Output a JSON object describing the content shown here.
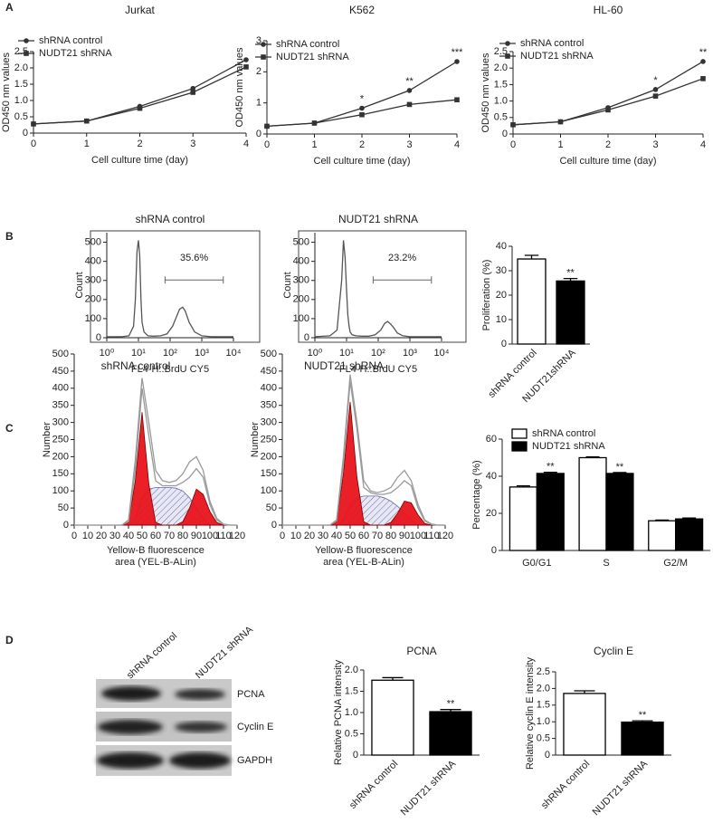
{
  "panel_labels": [
    "A",
    "B",
    "C",
    "D"
  ],
  "blot": {
    "lanes": [
      "shRNA control",
      "NUDT21 shRNA"
    ],
    "rows": [
      "PCNA",
      "Cyclin E",
      "GAPDH"
    ]
  },
  "chart_data": [
    {
      "type": "line",
      "title": "Jurkat",
      "x_label": "Cell culture time (day)",
      "y_label": "OD450 nm values",
      "x": [
        0,
        1,
        2,
        3,
        4
      ],
      "xlim": [
        0,
        4
      ],
      "xticks": [
        0,
        1,
        2,
        3,
        4
      ],
      "ylim": [
        0,
        2.5
      ],
      "yticks": [
        0,
        0.5,
        {
          "value": 1,
          "label": "1.0"
        },
        1.5,
        {
          "value": 2,
          "label": "2.0"
        },
        2.5
      ],
      "legend": "upper left",
      "series": [
        {
          "name": "shRNA control",
          "color": "#333333",
          "marker": "circle",
          "values": [
            0.28,
            0.37,
            0.82,
            1.37,
            2.25
          ]
        },
        {
          "name": "NUDT21 shRNA",
          "color": "#333333",
          "marker": "square",
          "values": [
            0.28,
            0.37,
            0.76,
            1.25,
            2.03
          ]
        }
      ]
    },
    {
      "type": "line",
      "title": "K562",
      "x_label": "Cell culture time (day)",
      "y_label": "OD450 nm values",
      "x": [
        0,
        1,
        2,
        3,
        4
      ],
      "xlim": [
        0,
        4
      ],
      "xticks": [
        0,
        1,
        2,
        3,
        4
      ],
      "ylim": [
        0,
        3
      ],
      "yticks": [
        0,
        1,
        2,
        3
      ],
      "legend": "upper left",
      "series": [
        {
          "name": "shRNA control",
          "color": "#333333",
          "marker": "circle",
          "values": [
            0.25,
            0.35,
            0.83,
            1.4,
            2.33
          ],
          "annotations": [
            null,
            null,
            "*",
            "**",
            "***"
          ]
        },
        {
          "name": "NUDT21 shRNA",
          "color": "#333333",
          "marker": "square",
          "values": [
            0.25,
            0.35,
            0.62,
            0.95,
            1.1
          ]
        }
      ]
    },
    {
      "type": "line",
      "title": "HL-60",
      "x_label": "Cell culture time (day)",
      "y_label": "OD450 nm values",
      "x": [
        0,
        1,
        2,
        3,
        4
      ],
      "xlim": [
        0,
        4
      ],
      "xticks": [
        0,
        1,
        2,
        3,
        4
      ],
      "ylim": [
        0,
        2.5
      ],
      "yticks": [
        0,
        0.5,
        {
          "value": 1,
          "label": "1.0"
        },
        1.5,
        {
          "value": 2,
          "label": "2.0"
        },
        2.5
      ],
      "legend": "upper left",
      "series": [
        {
          "name": "shRNA control",
          "color": "#333333",
          "marker": "circle",
          "values": [
            0.28,
            0.37,
            0.8,
            1.35,
            2.2
          ],
          "annotations": [
            null,
            null,
            null,
            "*",
            "**"
          ]
        },
        {
          "name": "NUDT21 shRNA",
          "color": "#333333",
          "marker": "square",
          "values": [
            0.28,
            0.37,
            0.73,
            1.15,
            1.68
          ]
        }
      ]
    },
    {
      "type": "line",
      "xscale": "log",
      "frame": true,
      "title": "shRNA control",
      "x_label": "FL4-H::BrdU CY5",
      "y_label": "Count",
      "gate_label": "35.6%",
      "x": [
        1,
        3,
        5,
        7,
        8,
        9,
        10,
        11,
        12,
        13,
        15,
        20,
        30,
        50,
        80,
        120,
        160,
        200,
        250,
        300,
        400,
        600,
        1000,
        2000,
        10000
      ],
      "xlim": [
        1,
        10000
      ],
      "xticks": [
        {
          "value": 1,
          "label": "10⁰"
        },
        {
          "value": 10,
          "label": "10¹"
        },
        {
          "value": 100,
          "label": "10²"
        },
        {
          "value": 1000,
          "label": "10³"
        },
        {
          "value": 10000,
          "label": "10⁴"
        }
      ],
      "ylim": [
        0,
        550
      ],
      "yticks": [
        0,
        100,
        200,
        300,
        400,
        500
      ],
      "series": [
        {
          "color": "#555555",
          "values": [
            5,
            5,
            10,
            60,
            200,
            450,
            510,
            430,
            200,
            80,
            30,
            10,
            8,
            10,
            20,
            60,
            110,
            150,
            160,
            140,
            80,
            30,
            10,
            5,
            5
          ]
        }
      ]
    },
    {
      "type": "line",
      "xscale": "log",
      "frame": true,
      "title": "NUDT21 shRNA",
      "x_label": "FL4-H::BrdU CY5",
      "y_label": "Count",
      "gate_label": "23.2%",
      "x": [
        1,
        3,
        5,
        7,
        8,
        9,
        10,
        11,
        12,
        13,
        15,
        20,
        30,
        50,
        80,
        120,
        160,
        200,
        250,
        300,
        400,
        600,
        1000,
        2000,
        10000
      ],
      "xlim": [
        1,
        10000
      ],
      "xticks": [
        {
          "value": 1,
          "label": "10⁰"
        },
        {
          "value": 10,
          "label": "10¹"
        },
        {
          "value": 100,
          "label": "10²"
        },
        {
          "value": 1000,
          "label": "10³"
        },
        {
          "value": 10000,
          "label": "10⁴"
        }
      ],
      "ylim": [
        0,
        550
      ],
      "yticks": [
        0,
        100,
        200,
        300,
        400,
        500
      ],
      "series": [
        {
          "color": "#555555",
          "values": [
            5,
            10,
            40,
            300,
            510,
            420,
            250,
            120,
            60,
            30,
            15,
            10,
            8,
            8,
            15,
            40,
            75,
            85,
            70,
            55,
            25,
            10,
            5,
            5,
            5
          ]
        }
      ]
    },
    {
      "type": "bar",
      "y_label": "Proliferation (%)",
      "categories": [
        "shRNA control",
        "NUDT21shRNA"
      ],
      "ylim": [
        0,
        40
      ],
      "yticks": [
        0,
        10,
        20,
        30,
        40
      ],
      "series": [
        {
          "colors": [
            "#ffffff",
            "#000000"
          ],
          "values": [
            34.8,
            25.8
          ],
          "errors": [
            1.5,
            1.0
          ],
          "annotations": [
            null,
            "**"
          ]
        }
      ]
    },
    {
      "type": "area",
      "title": "shRNA control",
      "x_label": [
        "Yellow-B fluorescence",
        "area (YEL-B-ALin)"
      ],
      "y_label": "Number",
      "x": [
        0,
        5,
        10,
        15,
        20,
        25,
        30,
        35,
        40,
        45,
        50,
        55,
        60,
        65,
        70,
        75,
        80,
        85,
        90,
        95,
        100,
        105,
        110,
        115,
        120
      ],
      "xlim": [
        0,
        120
      ],
      "xticks": [
        0,
        10,
        20,
        30,
        40,
        50,
        60,
        70,
        80,
        90,
        100,
        110,
        120
      ],
      "ylim": [
        0,
        500
      ],
      "yticks": [
        0,
        50,
        100,
        150,
        200,
        250,
        300,
        350,
        400,
        450,
        500
      ],
      "series": [
        {
          "color": "#6a6aa8",
          "style": "hatch",
          "values": [
            0,
            0,
            0,
            0,
            0,
            0,
            0,
            0,
            0,
            20,
            80,
            105,
            110,
            110,
            110,
            108,
            100,
            80,
            50,
            20,
            0,
            0,
            0,
            0,
            0
          ]
        },
        {
          "color": "#e8141c",
          "style": "fill",
          "values": [
            0,
            0,
            0,
            0,
            0,
            0,
            0,
            0,
            8,
            130,
            330,
            120,
            8,
            0,
            0,
            0,
            0,
            0,
            0,
            0,
            0,
            0,
            0,
            0,
            0
          ]
        },
        {
          "color": "#e8141c",
          "style": "fill",
          "values": [
            0,
            0,
            0,
            0,
            0,
            0,
            0,
            0,
            0,
            0,
            0,
            0,
            0,
            0,
            0,
            0,
            10,
            50,
            105,
            90,
            40,
            8,
            0,
            0,
            0
          ]
        },
        {
          "color": "#9a9a9a",
          "style": "line",
          "values": [
            0,
            0,
            0,
            0,
            0,
            0,
            0,
            0,
            10,
            160,
            400,
            260,
            130,
            115,
            115,
            115,
            125,
            140,
            165,
            140,
            60,
            15,
            2,
            0,
            0
          ]
        },
        {
          "color": "#9a9a9a",
          "style": "line",
          "values": [
            0,
            0,
            0,
            0,
            0,
            0,
            0,
            0,
            15,
            190,
            430,
            300,
            160,
            130,
            125,
            130,
            150,
            185,
            200,
            160,
            70,
            20,
            3,
            0,
            0
          ]
        }
      ]
    },
    {
      "type": "area",
      "title": "NUDT21 shRNA",
      "x_label": [
        "Yellow-B fluorescence",
        "area (YEL-B-ALin)"
      ],
      "y_label": "Number",
      "x": [
        0,
        5,
        10,
        15,
        20,
        25,
        30,
        35,
        40,
        45,
        50,
        55,
        60,
        65,
        70,
        75,
        80,
        85,
        90,
        95,
        100,
        105,
        110,
        115,
        120
      ],
      "xlim": [
        0,
        120
      ],
      "xticks": [
        0,
        10,
        20,
        30,
        40,
        50,
        60,
        70,
        80,
        90,
        100,
        110,
        120
      ],
      "ylim": [
        0,
        500
      ],
      "yticks": [
        0,
        50,
        100,
        150,
        200,
        250,
        300,
        350,
        400,
        450,
        500
      ],
      "series": [
        {
          "color": "#6a6aa8",
          "style": "hatch",
          "values": [
            0,
            0,
            0,
            0,
            0,
            0,
            0,
            0,
            0,
            15,
            60,
            80,
            85,
            85,
            85,
            80,
            70,
            55,
            35,
            15,
            0,
            0,
            0,
            0,
            0
          ]
        },
        {
          "color": "#e8141c",
          "style": "fill",
          "values": [
            0,
            0,
            0,
            0,
            0,
            0,
            0,
            0,
            10,
            150,
            360,
            140,
            10,
            0,
            0,
            0,
            0,
            0,
            0,
            0,
            0,
            0,
            0,
            0,
            0
          ]
        },
        {
          "color": "#e8141c",
          "style": "fill",
          "values": [
            0,
            0,
            0,
            0,
            0,
            0,
            0,
            0,
            0,
            0,
            0,
            0,
            0,
            0,
            0,
            0,
            8,
            35,
            70,
            65,
            30,
            5,
            0,
            0,
            0
          ]
        },
        {
          "color": "#9a9a9a",
          "style": "line",
          "values": [
            0,
            0,
            0,
            0,
            0,
            0,
            0,
            0,
            12,
            180,
            420,
            280,
            110,
            95,
            90,
            90,
            95,
            110,
            130,
            115,
            50,
            12,
            2,
            0,
            0
          ]
        },
        {
          "color": "#9a9a9a",
          "style": "line",
          "values": [
            0,
            0,
            0,
            0,
            0,
            0,
            0,
            0,
            15,
            200,
            440,
            300,
            130,
            100,
            95,
            100,
            110,
            140,
            160,
            130,
            60,
            15,
            3,
            0,
            0
          ]
        }
      ]
    },
    {
      "type": "bar",
      "y_label": "Percentage (%)",
      "categories": [
        "G0/G1",
        "S",
        "G2/M"
      ],
      "ylim": [
        0,
        60
      ],
      "yticks": [
        0,
        20,
        40,
        60
      ],
      "legend": "upper left",
      "series": [
        {
          "name": "shRNA control",
          "color": "#ffffff",
          "values": [
            34.2,
            50,
            16
          ],
          "errors": [
            0.6,
            0.4,
            0.4
          ]
        },
        {
          "name": "NUDT21 shRNA",
          "color": "#000000",
          "values": [
            41.5,
            41.5,
            17
          ],
          "errors": [
            0.6,
            0.5,
            0.5
          ],
          "annotations": [
            "**",
            "**",
            null
          ]
        }
      ]
    },
    {
      "type": "bar",
      "title": "PCNA",
      "y_label": "Relative PCNA intensity",
      "categories": [
        "shRNA control",
        "NUDT21 shRNA"
      ],
      "ylim": [
        0,
        2
      ],
      "yticks": [
        0,
        0.5,
        {
          "value": 1,
          "label": "1.0"
        },
        1.5,
        {
          "value": 2,
          "label": "2.0"
        }
      ],
      "series": [
        {
          "colors": [
            "#ffffff",
            "#000000"
          ],
          "values": [
            1.76,
            1.02
          ],
          "errors": [
            0.06,
            0.05
          ],
          "annotations": [
            null,
            "**"
          ]
        }
      ]
    },
    {
      "type": "bar",
      "title": "Cyclin E",
      "y_label": "Relative cyclin E intensity",
      "categories": [
        "shRNA control",
        "NUDT21 shRNA"
      ],
      "ylim": [
        0,
        2.5
      ],
      "yticks": [
        0,
        0.5,
        {
          "value": 1,
          "label": "1.0"
        },
        1.5,
        {
          "value": 2,
          "label": "2.0"
        },
        2.5
      ],
      "series": [
        {
          "colors": [
            "#ffffff",
            "#000000"
          ],
          "values": [
            1.85,
            0.99
          ],
          "errors": [
            0.08,
            0.04
          ],
          "annotations": [
            null,
            "**"
          ]
        }
      ]
    }
  ]
}
